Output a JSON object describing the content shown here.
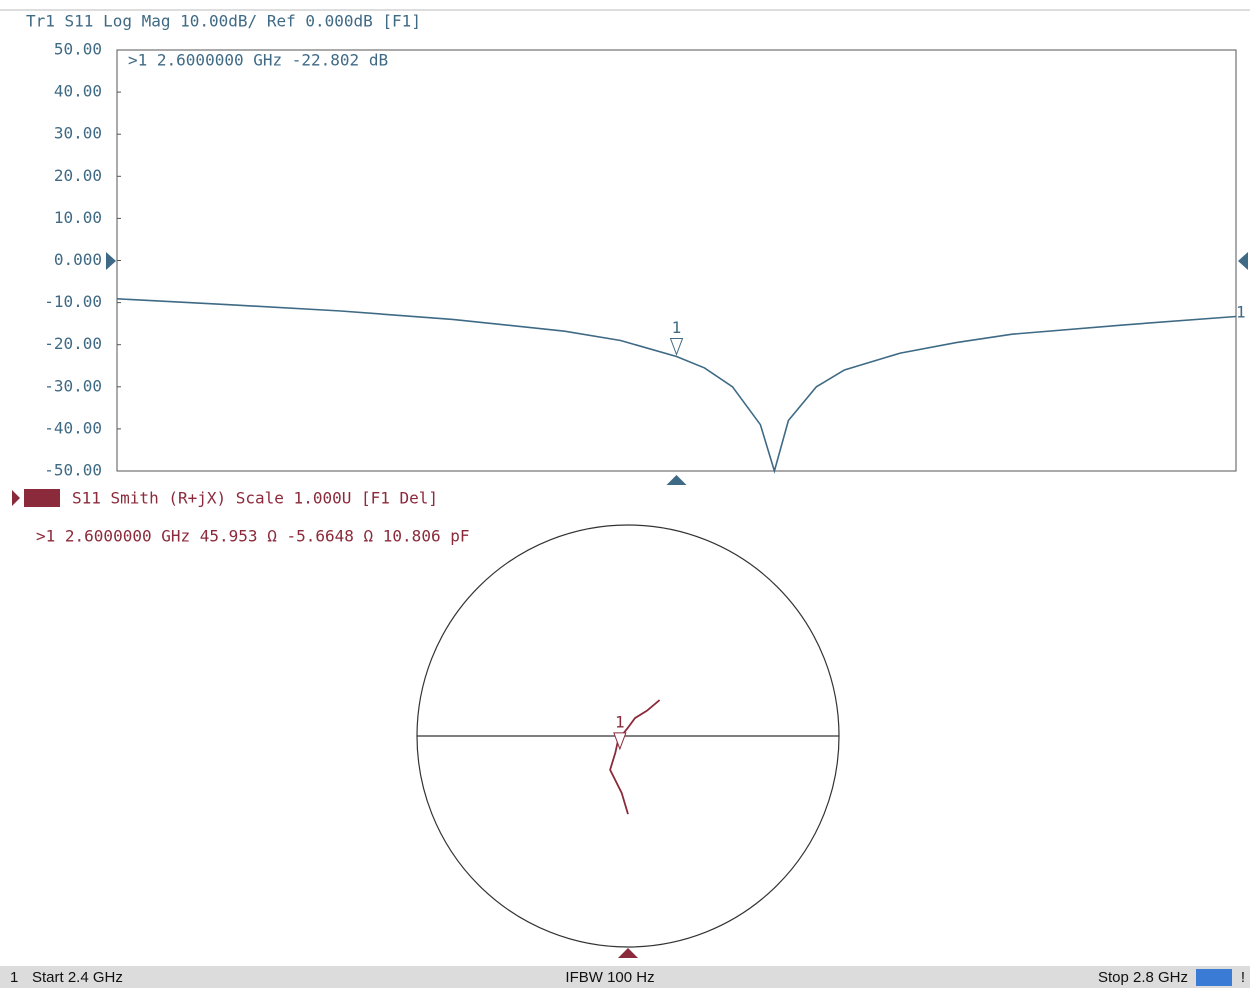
{
  "chart_data": [
    {
      "type": "line",
      "title": "Tr1 S11 Log Mag 10.00dB/ Ref 0.000dB [F1]",
      "readout": ">1  2.6000000 GHz -22.802 dB",
      "trace_label": "1",
      "color": "#3f6a85",
      "x": [
        2.4,
        2.44,
        2.48,
        2.52,
        2.56,
        2.58,
        2.6,
        2.61,
        2.62,
        2.63,
        2.635,
        2.64,
        2.65,
        2.66,
        2.68,
        2.7,
        2.72,
        2.76,
        2.8
      ],
      "values": [
        -9.1,
        -10.5,
        -12.0,
        -14.0,
        -16.8,
        -19.0,
        -22.8,
        -25.5,
        -30,
        -39,
        -50,
        -38,
        -30,
        -26,
        -22,
        -19.5,
        -17.5,
        -15.3,
        -13.3
      ],
      "xlim": [
        2.4,
        2.8
      ],
      "ylim": [
        -50,
        50
      ],
      "yticks": [
        {
          "value": 50,
          "label": "50.00"
        },
        {
          "value": 40,
          "label": "40.00"
        },
        {
          "value": 30,
          "label": "30.00"
        },
        {
          "value": 20,
          "label": "20.00"
        },
        {
          "value": 10,
          "label": "10.00"
        },
        {
          "value": 0,
          "label": "0.000"
        },
        {
          "value": -10,
          "label": "-10.00"
        },
        {
          "value": -20,
          "label": "-20.00"
        },
        {
          "value": -30,
          "label": "-30.00"
        },
        {
          "value": -40,
          "label": "-40.00"
        },
        {
          "value": -50,
          "label": "-50.00"
        }
      ],
      "markers": [
        {
          "label": "1",
          "x": 2.6,
          "value": -22.802
        }
      ]
    },
    {
      "type": "smith",
      "title": "S11 Smith (R+jX) Scale 1.000U [F1 Del]",
      "readout": ">1  2.6000000 GHz  45.953 Ω -5.6648 Ω  10.806 pF",
      "color": "#8b2a3a",
      "real": [
        0.0,
        -0.03,
        -0.085,
        -0.06,
        -0.047,
        0.0,
        0.033,
        0.09,
        0.15
      ],
      "imag": [
        -0.37,
        -0.27,
        -0.16,
        -0.08,
        -0.02,
        0.04,
        0.085,
        0.12,
        0.17
      ],
      "xlim": [
        -1,
        1
      ],
      "ylim": [
        -1,
        1
      ],
      "markers": [
        {
          "label": "1",
          "real": -0.0386,
          "imag": -0.0612
        }
      ]
    }
  ],
  "status_bar": {
    "channel": "1",
    "start": "Start 2.4 GHz",
    "ifbw": "IFBW 100 Hz",
    "stop": "Stop 2.8 GHz",
    "alert": "!"
  }
}
